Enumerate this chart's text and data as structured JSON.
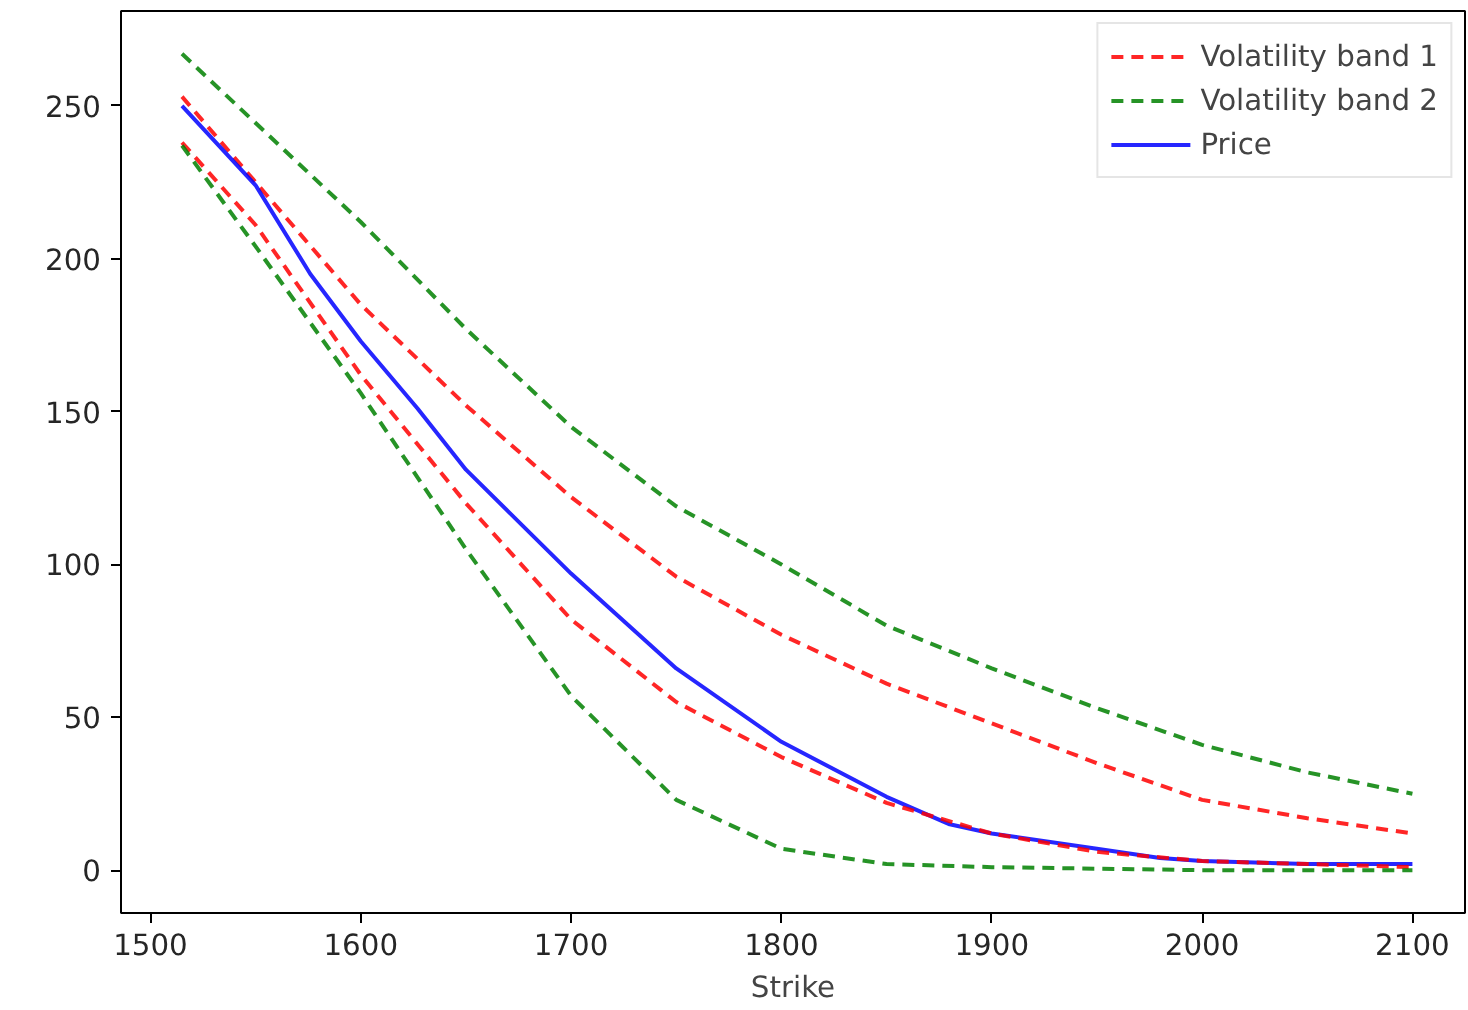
{
  "chart_data": {
    "type": "line",
    "xlabel": "Strike",
    "xlim": [
      1486,
      2125
    ],
    "ylim": [
      -14,
      281
    ],
    "xticks": [
      1500,
      1600,
      1700,
      1800,
      1900,
      2000,
      2100
    ],
    "yticks": [
      0,
      50,
      100,
      150,
      200,
      250
    ],
    "grid": false,
    "legend": "top right",
    "series": [
      {
        "name": "Volatility band 1",
        "color": "#ff0000",
        "line_style": "dashed",
        "x": [
          1515,
          1600,
          1650,
          1700,
          1750,
          1800,
          1850,
          1900,
          1950,
          2000,
          2050,
          2100
        ],
        "values": [
          253,
          185,
          152,
          122,
          96,
          77,
          61,
          48,
          35,
          23,
          17,
          12
        ]
      },
      {
        "name": "Volatility band 2",
        "color": "#008000",
        "line_style": "dashed",
        "x": [
          1515,
          1600,
          1650,
          1700,
          1750,
          1800,
          1850,
          1900,
          1950,
          2000,
          2050,
          2100
        ],
        "values": [
          267,
          212,
          177,
          145,
          119,
          100,
          80,
          66,
          53,
          41,
          32,
          25
        ]
      },
      {
        "name": "Price",
        "color": "#0000ff",
        "line_style": "solid",
        "x": [
          1515,
          1550,
          1576,
          1600,
          1627,
          1650,
          1700,
          1750,
          1800,
          1850,
          1880,
          1900,
          1950,
          1980,
          2000,
          2050,
          2100
        ],
        "values": [
          250,
          224,
          195,
          173,
          151,
          131,
          97,
          66,
          42,
          24,
          15,
          12,
          7,
          4,
          3,
          2,
          2
        ]
      },
      {
        "color": "#ff0000",
        "line_style": "dashed",
        "x": [
          1515,
          1550,
          1600,
          1650,
          1700,
          1750,
          1800,
          1850,
          1900,
          1950,
          2000,
          2100
        ],
        "values": [
          238,
          211,
          162,
          120,
          82,
          55,
          37,
          22,
          12,
          6,
          3,
          1
        ]
      },
      {
        "color": "#008000",
        "line_style": "dashed",
        "x": [
          1515,
          1550,
          1600,
          1650,
          1700,
          1750,
          1800,
          1850,
          1900,
          2000,
          2100
        ],
        "values": [
          237,
          204,
          156,
          105,
          57,
          23,
          7,
          2,
          1,
          0,
          0
        ]
      }
    ]
  }
}
